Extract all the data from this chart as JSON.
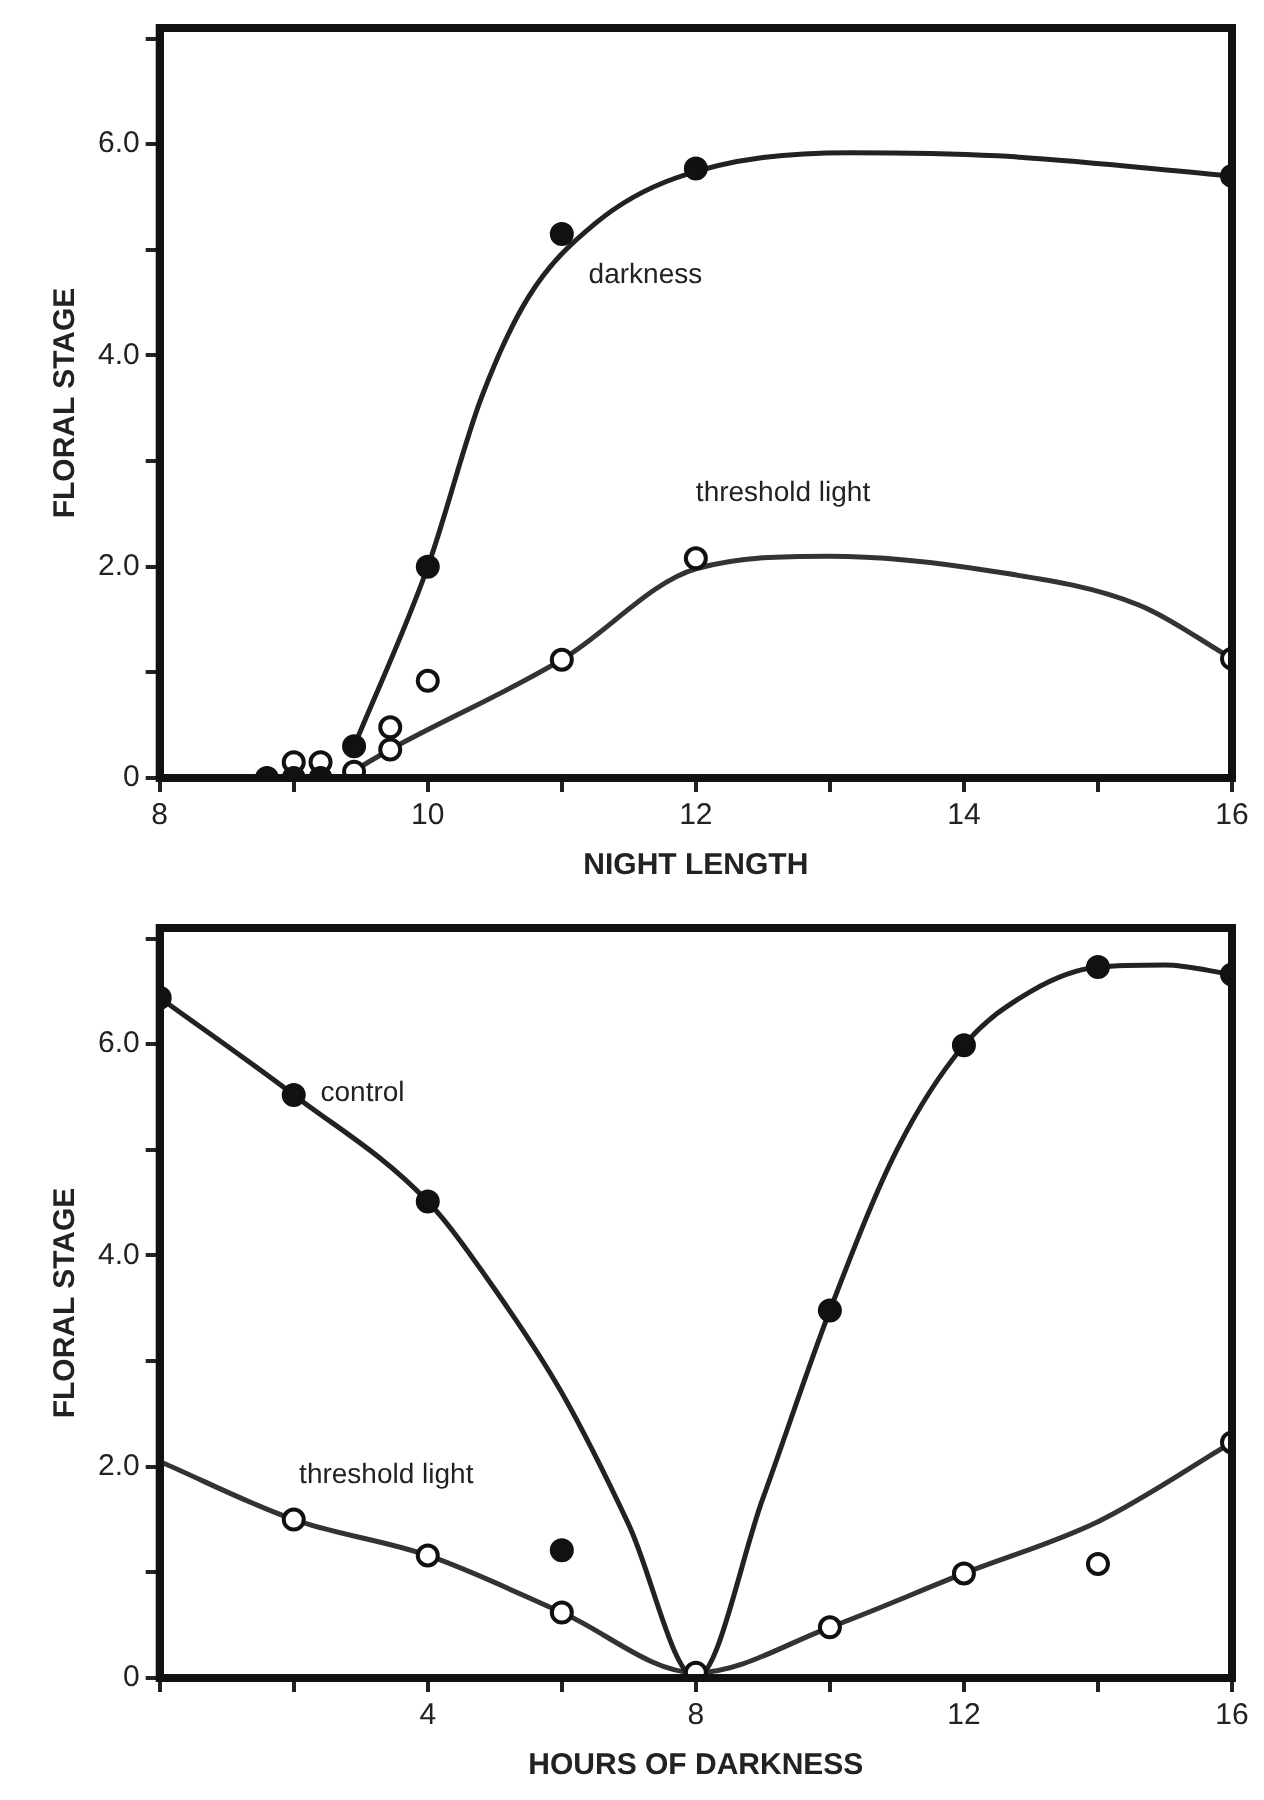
{
  "chart_data": [
    {
      "type": "scatter",
      "xlabel": "NIGHT LENGTH",
      "ylabel": "FLORAL STAGE",
      "xlim": [
        8,
        16
      ],
      "ylim": [
        0,
        7.1
      ],
      "xticks": [
        8,
        {
          "value": 9,
          "label": null
        },
        10,
        {
          "value": 11,
          "label": null
        },
        12,
        {
          "value": 13,
          "label": null
        },
        14,
        {
          "value": 15,
          "label": null
        },
        16
      ],
      "yticks": [
        {
          "value": 0,
          "label": "0"
        },
        {
          "value": 1,
          "label": null
        },
        {
          "value": 2,
          "label": "2.0"
        },
        {
          "value": 3,
          "label": null
        },
        {
          "value": 4,
          "label": "4.0"
        },
        {
          "value": 5,
          "label": null
        },
        {
          "value": 6,
          "label": "6.0"
        },
        {
          "value": 7,
          "label": null
        }
      ],
      "grid": false,
      "legend": false,
      "series": [
        {
          "type": "scatter",
          "marker": "circle",
          "color": "#111111",
          "x": [
            8.8,
            9.0,
            9.2,
            9.45,
            10,
            11,
            12,
            16
          ],
          "values": [
            0,
            0,
            0,
            0.3,
            2.0,
            5.15,
            5.77,
            5.7
          ]
        },
        {
          "type": "scatter",
          "marker": "open circle",
          "color": "#111111",
          "x": [
            9.0,
            9.2,
            9.45,
            9.72,
            9.72,
            10,
            11,
            12,
            16
          ],
          "values": [
            0.15,
            0.15,
            0.06,
            0.48,
            0.27,
            0.92,
            1.12,
            2.08,
            1.13
          ]
        },
        {
          "type": "line",
          "marker": "none",
          "color": "#222222",
          "x": [
            9.45,
            10,
            10.4,
            10.75,
            11.25,
            11.85,
            13.15,
            14.25,
            16
          ],
          "values": [
            0.3,
            2.0,
            3.6,
            4.55,
            5.25,
            5.68,
            5.92,
            5.89,
            5.7
          ]
        },
        {
          "type": "line",
          "marker": "none",
          "color": "#333333",
          "x": [
            9.45,
            9.72,
            11,
            12,
            13,
            14.2,
            15.3,
            16
          ],
          "values": [
            0.07,
            0.27,
            1.12,
            1.98,
            2.1,
            1.96,
            1.64,
            1.13
          ]
        }
      ],
      "annotations": [
        "darkness",
        "threshold light"
      ]
    },
    {
      "type": "scatter",
      "xlabel": "HOURS OF DARKNESS",
      "ylabel": "FLORAL STAGE",
      "xlim": [
        0,
        16
      ],
      "ylim": [
        0,
        7.1
      ],
      "xticks": [
        {
          "value": 0,
          "label": null
        },
        {
          "value": 2,
          "label": null
        },
        4,
        {
          "value": 6,
          "label": null
        },
        8,
        {
          "value": 10,
          "label": null
        },
        12,
        {
          "value": 14,
          "label": null
        },
        16
      ],
      "yticks": [
        {
          "value": 0,
          "label": "0"
        },
        {
          "value": 1,
          "label": null
        },
        {
          "value": 2,
          "label": "2.0"
        },
        {
          "value": 3,
          "label": null
        },
        {
          "value": 4,
          "label": "4.0"
        },
        {
          "value": 5,
          "label": null
        },
        {
          "value": 6,
          "label": "6.0"
        },
        {
          "value": 7,
          "label": null
        }
      ],
      "grid": false,
      "legend": false,
      "series": [
        {
          "type": "scatter",
          "marker": "circle",
          "color": "#111111",
          "x": [
            0,
            2,
            4,
            6,
            10,
            12,
            14,
            16
          ],
          "values": [
            6.44,
            5.52,
            4.51,
            1.21,
            3.48,
            5.99,
            6.73,
            6.66
          ]
        },
        {
          "type": "scatter",
          "marker": "open circle",
          "color": "#111111",
          "x": [
            2,
            4,
            6,
            8,
            10,
            12,
            14,
            16
          ],
          "values": [
            1.5,
            1.16,
            0.62,
            0.05,
            0.48,
            0.99,
            1.08,
            2.23
          ]
        },
        {
          "type": "line",
          "marker": "none",
          "color": "#222222",
          "x": [
            0,
            2,
            4,
            5,
            6,
            7,
            8,
            9,
            10,
            11,
            12,
            13,
            14,
            15,
            16
          ],
          "values": [
            6.44,
            5.52,
            4.51,
            3.68,
            2.7,
            1.45,
            0,
            1.7,
            3.48,
            5.0,
            5.99,
            6.5,
            6.73,
            6.75,
            6.66
          ]
        },
        {
          "type": "line",
          "marker": "none",
          "color": "#333333",
          "x": [
            0,
            2,
            4,
            6,
            8,
            10,
            12,
            14,
            16
          ],
          "values": [
            2.05,
            1.5,
            1.16,
            0.62,
            0.05,
            0.48,
            0.99,
            1.48,
            2.23
          ]
        }
      ],
      "annotations": [
        "control",
        "threshold light"
      ]
    }
  ]
}
